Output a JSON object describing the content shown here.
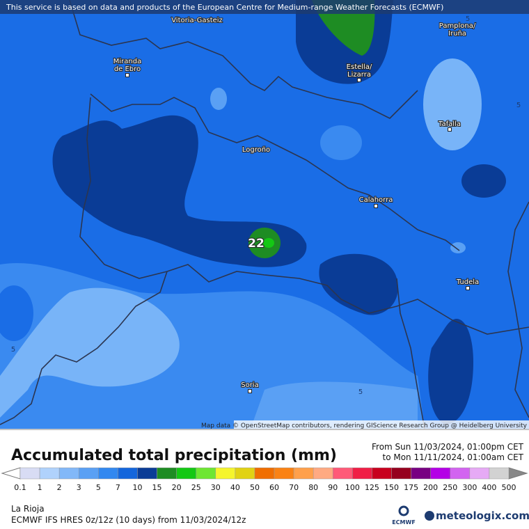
{
  "banner": "This service is based on data and products of the European Centre for Medium-range Weather Forecasts (ECMWF)",
  "places": [
    [
      "Vitoria-Gasteiz"
    ],
    [
      "Pamplona/",
      "Iruña"
    ],
    [
      "Miranda",
      "de Ebro"
    ],
    [
      "Estella/",
      "Lizarra"
    ],
    [
      "Tafalla"
    ],
    [
      "Logroño"
    ],
    [
      "Calahorra"
    ],
    [
      "Tudela"
    ],
    [
      "Soria"
    ]
  ],
  "contour_labels": [
    5,
    5,
    5,
    5,
    22
  ],
  "attribution": "Map data © OpenStreetMap contributors, rendering GIScience Research Group @ Heidelberg University",
  "legend": {
    "title": "Accumulated total precipitation (mm)",
    "period": [
      "From Sun 11/03/2024, 01:00pm CET",
      "to Mon 11/11/2024, 01:00am CET"
    ],
    "labels": [
      0.1,
      1,
      2,
      3,
      5,
      7,
      10,
      15,
      20,
      25,
      30,
      40,
      50,
      60,
      70,
      80,
      90,
      100,
      125,
      150,
      175,
      200,
      250,
      300,
      400,
      500
    ],
    "colors": [
      "#d8dcf4",
      "#b0d2fc",
      "#82b8f8",
      "#5aa0f4",
      "#3288f0",
      "#1466dc",
      "#0a3c96",
      "#1e8c23",
      "#14c814",
      "#6ee632",
      "#f5f52d",
      "#e1d214",
      "#f06e00",
      "#fa8214",
      "#ffa04b",
      "#ffaa82",
      "#ff5a78",
      "#f01e46",
      "#c8001e",
      "#96001e",
      "#780082",
      "#b400e6",
      "#d264f0",
      "#e6aaf5",
      "#d2d2d2"
    ]
  },
  "footer": {
    "region": "La Rioja",
    "model": "ECMWF IFS HRES 0z/12z (10 days) from 11/03/2024/12z",
    "ecmwf": "ECMWF",
    "brand": "meteologix.com"
  }
}
